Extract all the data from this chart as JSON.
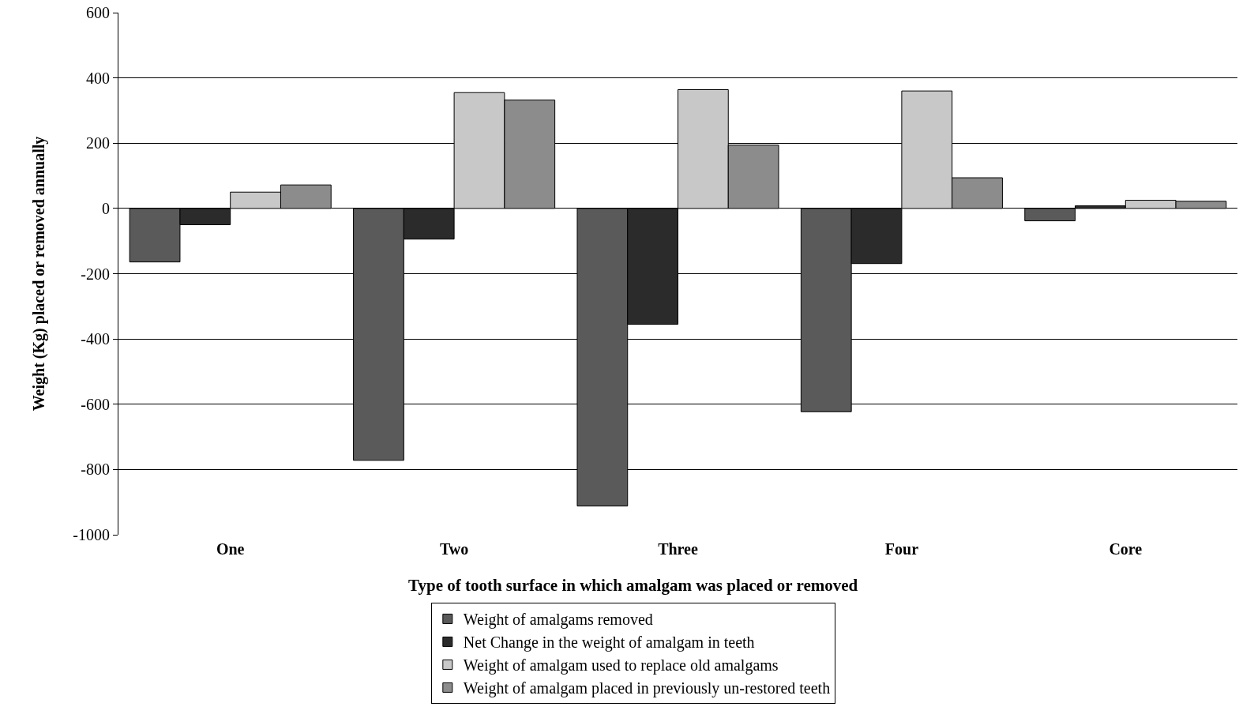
{
  "chart_data": {
    "type": "bar",
    "xlabel": "Type of tooth surface in which amalgam was placed or removed",
    "ylabel": "Weight (Kg) placed or removed annually",
    "categories": [
      "One",
      "Two",
      "Three",
      "Four",
      "Core"
    ],
    "series": [
      {
        "name": "Weight of amalgams removed",
        "color": "#5a5a5a",
        "values": [
          -164,
          -772,
          -912,
          -623,
          -38
        ]
      },
      {
        "name": "Net Change in the weight of amalgam in teeth",
        "color": "#2b2b2b",
        "values": [
          -50,
          -94,
          -355,
          -169,
          8
        ]
      },
      {
        "name": "Weight of amalgam used to replace old amalgams",
        "color": "#c8c8c8",
        "values": [
          50,
          355,
          364,
          360,
          25
        ]
      },
      {
        "name": "Weight of amalgam placed in previously un-restored teeth",
        "color": "#8c8c8c",
        "values": [
          72,
          332,
          194,
          94,
          22
        ]
      }
    ],
    "ylim": [
      -1000,
      600
    ],
    "yticks": [
      -1000,
      -800,
      -600,
      -400,
      -200,
      0,
      200,
      400,
      600
    ],
    "grid": "y",
    "legend": "bottom"
  }
}
